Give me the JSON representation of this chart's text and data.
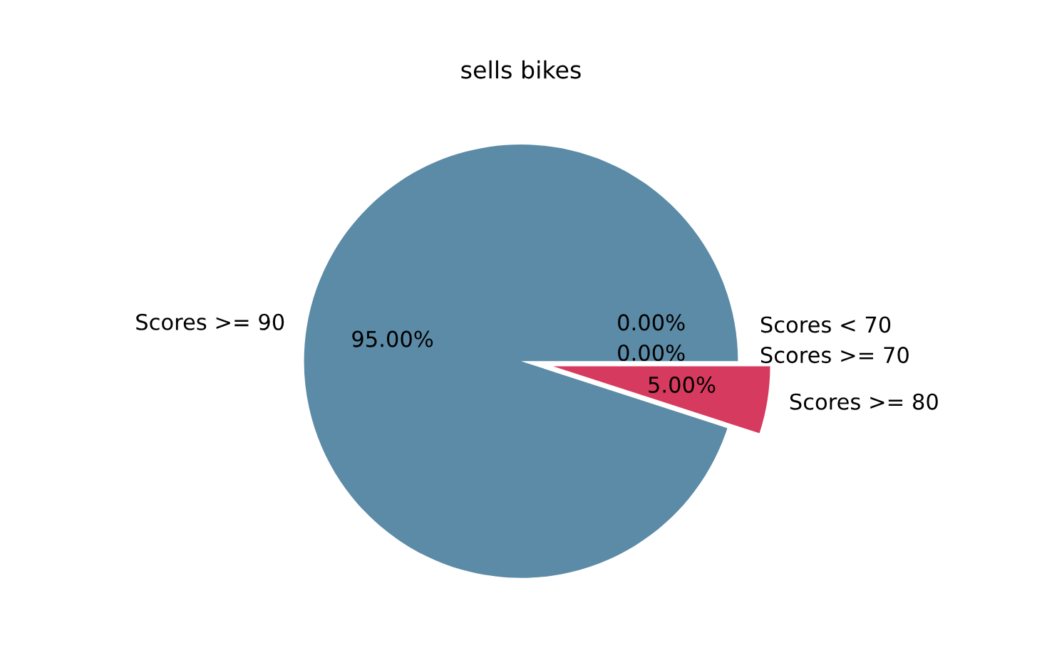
{
  "chart_data": {
    "type": "pie",
    "title": "sells bikes",
    "categories": [
      "Scores >= 90",
      "Scores >= 80",
      "Scores >= 70",
      "Scores < 70"
    ],
    "values": [
      95,
      5,
      0,
      0
    ],
    "value_labels": [
      "95.00%",
      "5.00%",
      "0.00%",
      "0.00%"
    ],
    "colors": [
      "#5b8ba6",
      "#d63a5e",
      "#8fb58a",
      "#e0a94f"
    ],
    "legend": false
  }
}
